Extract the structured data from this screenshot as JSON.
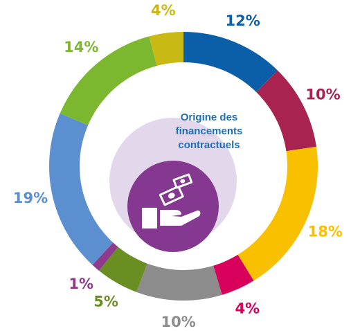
{
  "chart_data": {
    "type": "donut",
    "title_lines": [
      "Origine des",
      "financements",
      "contractuels"
    ],
    "values": [
      12,
      10,
      18,
      4,
      10,
      5,
      1,
      19,
      14,
      4
    ],
    "value_labels": [
      "12%",
      "10%",
      "18%",
      "4%",
      "10%",
      "5%",
      "1%",
      "19%",
      "14%",
      "4%"
    ],
    "colors": [
      "#0b5ea8",
      "#a8234f",
      "#f9c000",
      "#d9005b",
      "#8c8c8c",
      "#6b8e23",
      "#8e3b8e",
      "#5b8fd0",
      "#7bb72f",
      "#c8b914"
    ]
  }
}
